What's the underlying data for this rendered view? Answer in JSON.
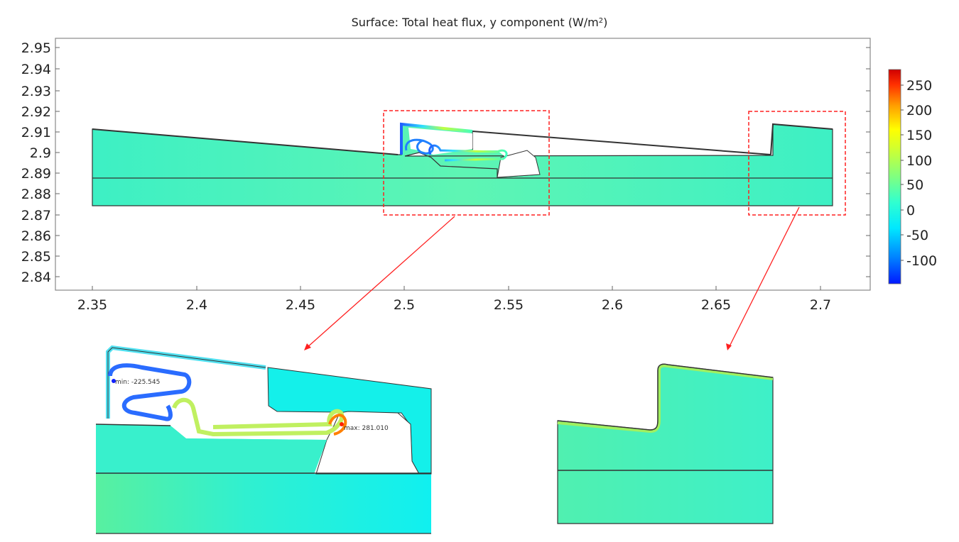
{
  "figure": {
    "title": "Surface: Total heat flux, y component (W/m",
    "title_sup": "2",
    "title_close": ")"
  },
  "axes": {
    "y_ticks": [
      "2.95",
      "2.94",
      "2.93",
      "2.92",
      "2.91",
      "2.9",
      "2.89",
      "2.88",
      "2.87",
      "2.86",
      "2.85",
      "2.84"
    ],
    "x_ticks": [
      "2.35",
      "2.4",
      "2.45",
      "2.5",
      "2.55",
      "2.6",
      "2.65",
      "2.7"
    ]
  },
  "colorbar": {
    "ticks": [
      "250",
      "200",
      "150",
      "100",
      "50",
      "0",
      "-50",
      "-100"
    ],
    "colors": [
      "#0018ff",
      "#00a8ff",
      "#00f0f0",
      "#40ffc0",
      "#a0ff60",
      "#ffff00",
      "#ffa000",
      "#ff2000",
      "#d00000"
    ]
  },
  "annotations": {
    "min_label": "min: -225.545",
    "max_label": "max: 281.010"
  },
  "palette": {
    "field": "#3ef5c9",
    "field_light": "#5ef0b0",
    "cyan": "#14f2ea",
    "highlight_box": "#ff2020"
  }
}
